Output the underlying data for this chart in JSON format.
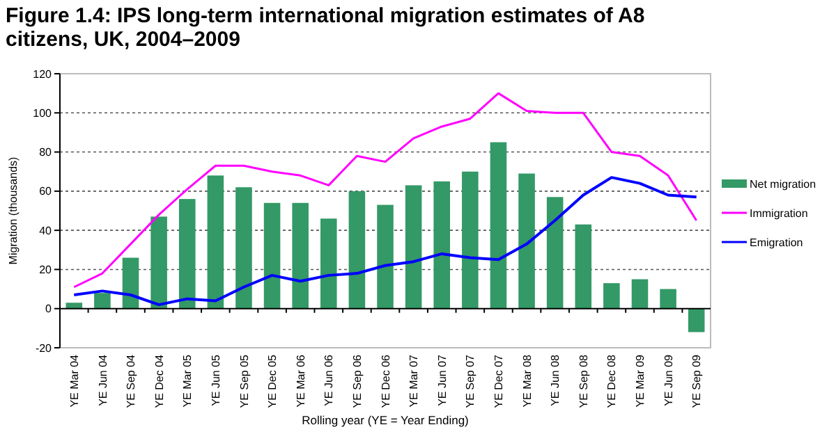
{
  "chart_data": {
    "type": "bar",
    "title": "Figure 1.4: IPS long-term international migration estimates of A8 citizens, UK, 2004–2009",
    "xlabel": "Rolling year (YE = Year Ending)",
    "ylabel": "Migration (thousands)",
    "categories": [
      "YE Mar 04",
      "YE Jun 04",
      "YE Sep 04",
      "YE Dec 04",
      "YE Mar 05",
      "YE Jun 05",
      "YE Sep 05",
      "YE Dec 05",
      "YE Mar 06",
      "YE Jun 06",
      "YE Sep 06",
      "YE Dec 06",
      "YE Mar 07",
      "YE Jun 07",
      "YE Sep 07",
      "YE Dec 07",
      "YE Mar 08",
      "YE Jun 08",
      "YE Sep 08",
      "YE Dec 08",
      "YE Mar 09",
      "YE Jun 09",
      "YE Sep 09"
    ],
    "series": [
      {
        "name": "Net migration",
        "color": "#339966",
        "values": [
          3,
          8,
          26,
          47,
          56,
          68,
          62,
          54,
          54,
          46,
          60,
          53,
          63,
          65,
          70,
          85,
          69,
          57,
          43,
          13,
          15,
          10,
          -12
        ]
      },
      {
        "name": "Immigration",
        "type": "line",
        "color": "#ff00ff",
        "values": [
          11,
          18,
          33,
          48,
          61,
          73,
          73,
          70,
          68,
          63,
          78,
          75,
          87,
          93,
          97,
          110,
          101,
          100,
          100,
          80,
          78,
          68,
          45
        ]
      },
      {
        "name": "Emigration",
        "type": "line",
        "color": "#0000ff",
        "values": [
          7,
          9,
          7,
          2,
          5,
          4,
          11,
          17,
          14,
          17,
          18,
          22,
          24,
          28,
          26,
          25,
          33,
          45,
          58,
          67,
          64,
          58,
          57
        ]
      }
    ],
    "ylim": [
      -20,
      120
    ],
    "yticks": [
      -20,
      0,
      20,
      40,
      60,
      80,
      100,
      120
    ],
    "grid": "y",
    "legend": "right"
  }
}
